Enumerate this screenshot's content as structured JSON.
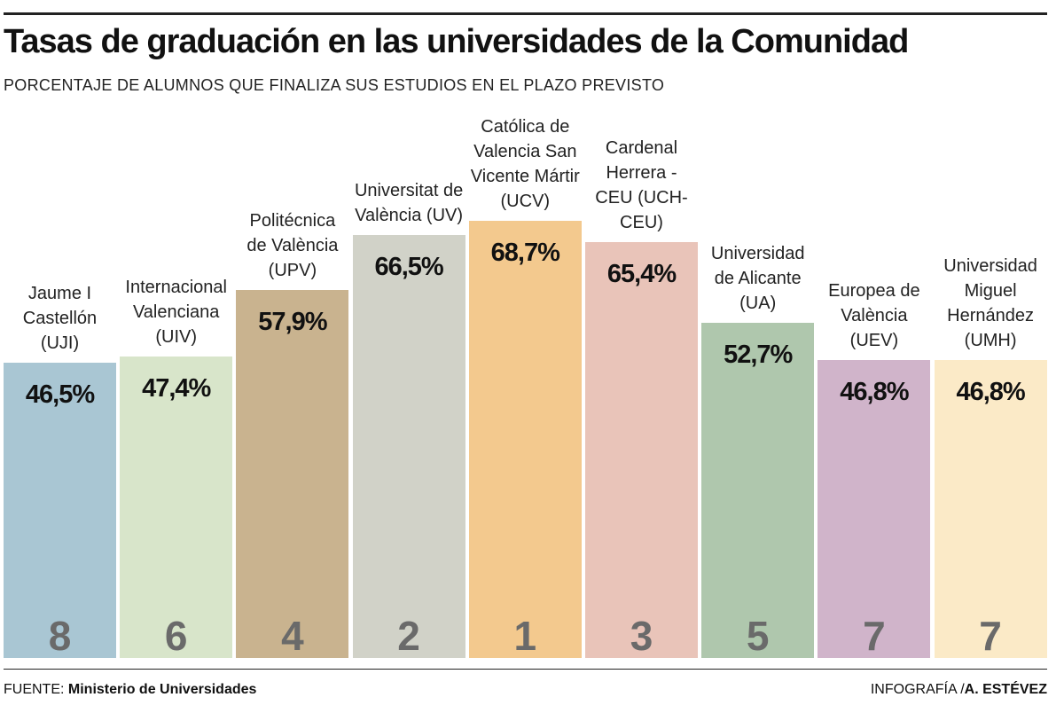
{
  "chart_data": {
    "type": "bar",
    "title": "Tasas de graduación en las universidades de la Comunidad",
    "subtitle": "PORCENTAJE DE ALUMNOS QUE FINALIZA SUS ESTUDIOS EN EL PLAZO PREVISTO",
    "categories": [
      "Jaume I Castellón (UJI)",
      "Internacional Valenciana (UIV)",
      "Politécnica de València (UPV)",
      "Universitat de València (UV)",
      "Católica de Valencia San Vicente Mártir (UCV)",
      "Cardenal Herrera - CEU (UCH-CEU)",
      "Universidad de Alicante (UA)",
      "Europea de València (UEV)",
      "Universidad Miguel Hernández (UMH)"
    ],
    "values": [
      46.5,
      47.4,
      57.9,
      66.5,
      68.7,
      65.4,
      52.7,
      46.8,
      46.8
    ],
    "value_labels": [
      "46,5%",
      "47,4%",
      "57,9%",
      "66,5%",
      "68,7%",
      "65,4%",
      "52,7%",
      "46,8%",
      "46,8%"
    ],
    "ranks": [
      8,
      6,
      4,
      2,
      1,
      3,
      5,
      7,
      7
    ],
    "colors": [
      "#a9c6d3",
      "#d8e5ca",
      "#c9b38f",
      "#d1d2c8",
      "#f3c98e",
      "#e9c4b9",
      "#afc7ad",
      "#d0b4ca",
      "#fbeac7"
    ],
    "source_label": "FUENTE:",
    "source": "Ministerio de Universidades",
    "credit_label": "INFOGRAFÍA /",
    "credit": "A. ESTÉVEZ"
  }
}
